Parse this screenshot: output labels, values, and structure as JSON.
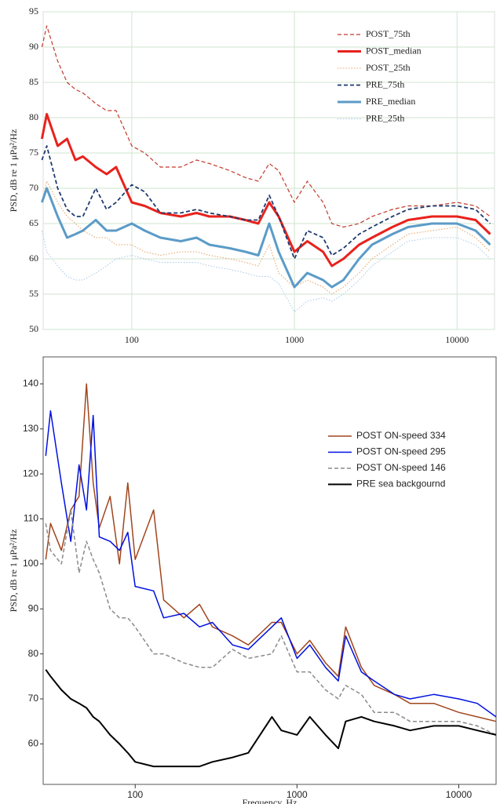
{
  "chart_data": [
    {
      "type": "line",
      "ylabel": "PSD, dB re 1 μPa²/Hz",
      "xscale": "log",
      "grid": true,
      "legend": "upper right",
      "x": [
        28,
        30,
        35,
        40,
        45,
        50,
        60,
        70,
        80,
        100,
        120,
        150,
        200,
        250,
        300,
        400,
        500,
        600,
        700,
        800,
        1000,
        1200,
        1500,
        1700,
        2000,
        2500,
        3000,
        4000,
        5000,
        7000,
        10000,
        13000,
        16000
      ],
      "xlim": [
        28.5,
        17000
      ],
      "xticks": [
        100,
        1000,
        10000
      ],
      "ylim": [
        50,
        95
      ],
      "yticks": [
        50,
        55,
        60,
        65,
        70,
        75,
        80,
        85,
        90,
        95
      ],
      "series": [
        {
          "name": "POST_75th",
          "color": "#c0392b",
          "line_style": "dashed",
          "line_width": 1.2,
          "values": [
            90,
            93,
            88,
            85,
            84,
            83.5,
            82,
            81,
            81,
            76,
            75,
            73,
            73,
            74,
            73.5,
            72.5,
            71.5,
            71,
            73.5,
            72.5,
            68,
            71,
            68,
            65,
            64.5,
            65,
            66,
            67,
            67.5,
            67.5,
            68,
            67.5,
            66
          ]
        },
        {
          "name": "POST_median",
          "color": "#e8221c",
          "line_style": "solid",
          "line_width": 3,
          "values": [
            77,
            80.5,
            76,
            77,
            74,
            74.5,
            73,
            72,
            73,
            68,
            67.5,
            66.5,
            66,
            66.5,
            66,
            66,
            65.5,
            65,
            68,
            66,
            61,
            62.5,
            61,
            59,
            60,
            62,
            63,
            64.5,
            65.5,
            66,
            66,
            65.5,
            63.5
          ]
        },
        {
          "name": "POST_25th",
          "color": "#e8a060",
          "line_style": "dotted",
          "line_width": 1,
          "values": [
            68,
            71,
            68,
            66,
            65,
            64,
            63,
            63,
            62,
            62,
            61,
            60.5,
            61,
            61,
            60.5,
            60,
            59.5,
            59,
            62,
            58,
            56,
            57,
            56,
            55,
            56,
            58,
            60,
            62,
            63.5,
            64,
            64.5,
            63,
            61
          ]
        },
        {
          "name": "PRE_75th",
          "color": "#1f3a6e",
          "line_style": "dashed",
          "line_width": 1.8,
          "values": [
            74,
            76,
            70,
            67,
            66,
            66,
            70,
            67,
            68,
            70.5,
            69.5,
            66.5,
            66.5,
            67,
            66.5,
            66,
            65.5,
            65.5,
            69,
            66,
            60,
            64,
            63,
            60.5,
            61.5,
            63.5,
            64.5,
            66,
            67,
            67.5,
            67.5,
            67,
            65
          ]
        },
        {
          "name": "PRE_median",
          "color": "#5b9bc7",
          "line_style": "solid",
          "line_width": 3,
          "values": [
            68,
            70,
            66,
            63,
            63.5,
            64,
            65.5,
            64,
            64,
            65,
            64,
            63,
            62.5,
            63,
            62,
            61.5,
            61,
            60.5,
            65,
            61,
            56,
            58,
            57,
            56,
            57,
            60,
            62,
            63.5,
            64.5,
            65,
            65,
            64,
            62
          ]
        },
        {
          "name": "PRE_25th",
          "color": "#a8c8e8",
          "line_style": "dotted",
          "line_width": 1,
          "values": [
            64,
            61,
            59,
            57.5,
            57,
            57,
            58,
            59,
            60,
            60.5,
            60,
            59.5,
            59.5,
            59.5,
            59,
            58.5,
            58,
            57.5,
            57.5,
            56.5,
            52.5,
            54,
            54.5,
            54,
            55,
            57,
            59,
            61,
            62.5,
            63,
            63,
            62,
            60
          ]
        }
      ]
    },
    {
      "type": "line",
      "ylabel": "PSD, dB re 1 μPa²/Hz",
      "xlabel": "Frequency, Hz",
      "xscale": "log",
      "grid": false,
      "legend": "upper right",
      "x": [
        28,
        30,
        35,
        40,
        45,
        50,
        55,
        60,
        70,
        80,
        90,
        100,
        130,
        150,
        200,
        250,
        300,
        400,
        500,
        700,
        800,
        1000,
        1200,
        1500,
        1800,
        2000,
        2500,
        3000,
        4000,
        5000,
        7000,
        10000,
        13000,
        17000
      ],
      "xlim": [
        27,
        17000
      ],
      "xticks": [
        100,
        1000,
        10000
      ],
      "ylim": [
        51,
        146
      ],
      "yticks": [
        60,
        70,
        80,
        90,
        100,
        110,
        120,
        130,
        140
      ],
      "series": [
        {
          "name": "POST ON-speed 334",
          "color": "#a0461e",
          "line_style": "solid",
          "line_width": 1.5,
          "values": [
            101,
            109,
            103,
            112,
            115,
            140,
            118,
            108,
            115,
            100,
            118,
            101,
            112,
            92,
            88,
            91,
            86,
            84,
            82,
            87,
            87,
            80,
            83,
            78,
            75,
            86,
            77,
            73,
            71,
            69,
            69,
            67,
            66,
            65
          ]
        },
        {
          "name": "POST ON-speed 295",
          "color": "#0010e0",
          "line_style": "solid",
          "line_width": 1.5,
          "values": [
            124,
            134,
            118,
            105,
            122,
            112,
            133,
            106,
            105,
            103,
            107,
            95,
            94,
            88,
            89,
            86,
            87,
            82,
            81,
            86,
            88,
            79,
            82,
            77,
            74,
            84,
            76,
            74,
            71,
            70,
            71,
            70,
            69,
            66
          ]
        },
        {
          "name": "POST ON-speed 146",
          "color": "#8a8a8a",
          "line_style": "dashed",
          "line_width": 1.5,
          "values": [
            109,
            103,
            100,
            112,
            98,
            105,
            101,
            98,
            90,
            88,
            88,
            86,
            80,
            80,
            78,
            77,
            77,
            81,
            79,
            80,
            84,
            76,
            76,
            72,
            70,
            73,
            71,
            67,
            67,
            65,
            65,
            65,
            64,
            62
          ]
        },
        {
          "name": "PRE sea backgournd",
          "color": "#000000",
          "line_style": "solid",
          "line_width": 2,
          "values": [
            76.5,
            75,
            72,
            70,
            69,
            68,
            66,
            65,
            62,
            60,
            58,
            56,
            55,
            55,
            55,
            55,
            56,
            57,
            58,
            66,
            63,
            62,
            66,
            62,
            59,
            65,
            66,
            65,
            64,
            63,
            64,
            64,
            63,
            62
          ]
        }
      ]
    }
  ]
}
